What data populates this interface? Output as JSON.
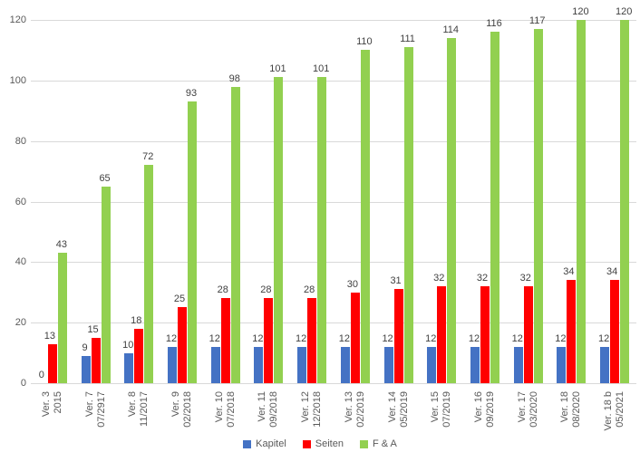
{
  "chart_data": {
    "type": "bar",
    "title": "",
    "xlabel": "",
    "ylabel": "",
    "ylim": [
      0,
      120
    ],
    "yticks": [
      0,
      20,
      40,
      60,
      80,
      100,
      120
    ],
    "grid": true,
    "legend_position": "bottom",
    "categories": [
      {
        "version": "Ver. 3",
        "date": "2015"
      },
      {
        "version": "Ver. 7",
        "date": "07/2917"
      },
      {
        "version": "Ver. 8",
        "date": "11/2017"
      },
      {
        "version": "Ver. 9",
        "date": "02/2018"
      },
      {
        "version": "Ver. 10",
        "date": "07/2018"
      },
      {
        "version": "Ver. 11",
        "date": "09/2018"
      },
      {
        "version": "Ver. 12",
        "date": "12/2018"
      },
      {
        "version": "Ver. 13",
        "date": "02/2019"
      },
      {
        "version": "Ver. 14",
        "date": "05/2019"
      },
      {
        "version": "Ver. 15",
        "date": "07/2019"
      },
      {
        "version": "Ver. 16",
        "date": "09/2019"
      },
      {
        "version": "Ver. 17",
        "date": "03/2020"
      },
      {
        "version": "Ver. 18",
        "date": "08/2020"
      },
      {
        "version": "Ver. 18 b",
        "date": "05/2021"
      }
    ],
    "series": [
      {
        "name": "Kapitel",
        "color": "#4472C4",
        "values": [
          0,
          9,
          10,
          12,
          12,
          12,
          12,
          12,
          12,
          12,
          12,
          12,
          12,
          12
        ]
      },
      {
        "name": "Seiten",
        "color": "#FF0000",
        "values": [
          13,
          15,
          18,
          25,
          28,
          28,
          28,
          30,
          31,
          32,
          32,
          32,
          34,
          34
        ]
      },
      {
        "name": "F & A",
        "color": "#92D050",
        "values": [
          43,
          65,
          72,
          93,
          98,
          101,
          101,
          110,
          111,
          114,
          116,
          117,
          120,
          120
        ]
      }
    ],
    "colors": {
      "grid": "#D9D9D9",
      "axis_text": "#595959",
      "data_label": "#404040",
      "background": "#FFFFFF"
    }
  }
}
